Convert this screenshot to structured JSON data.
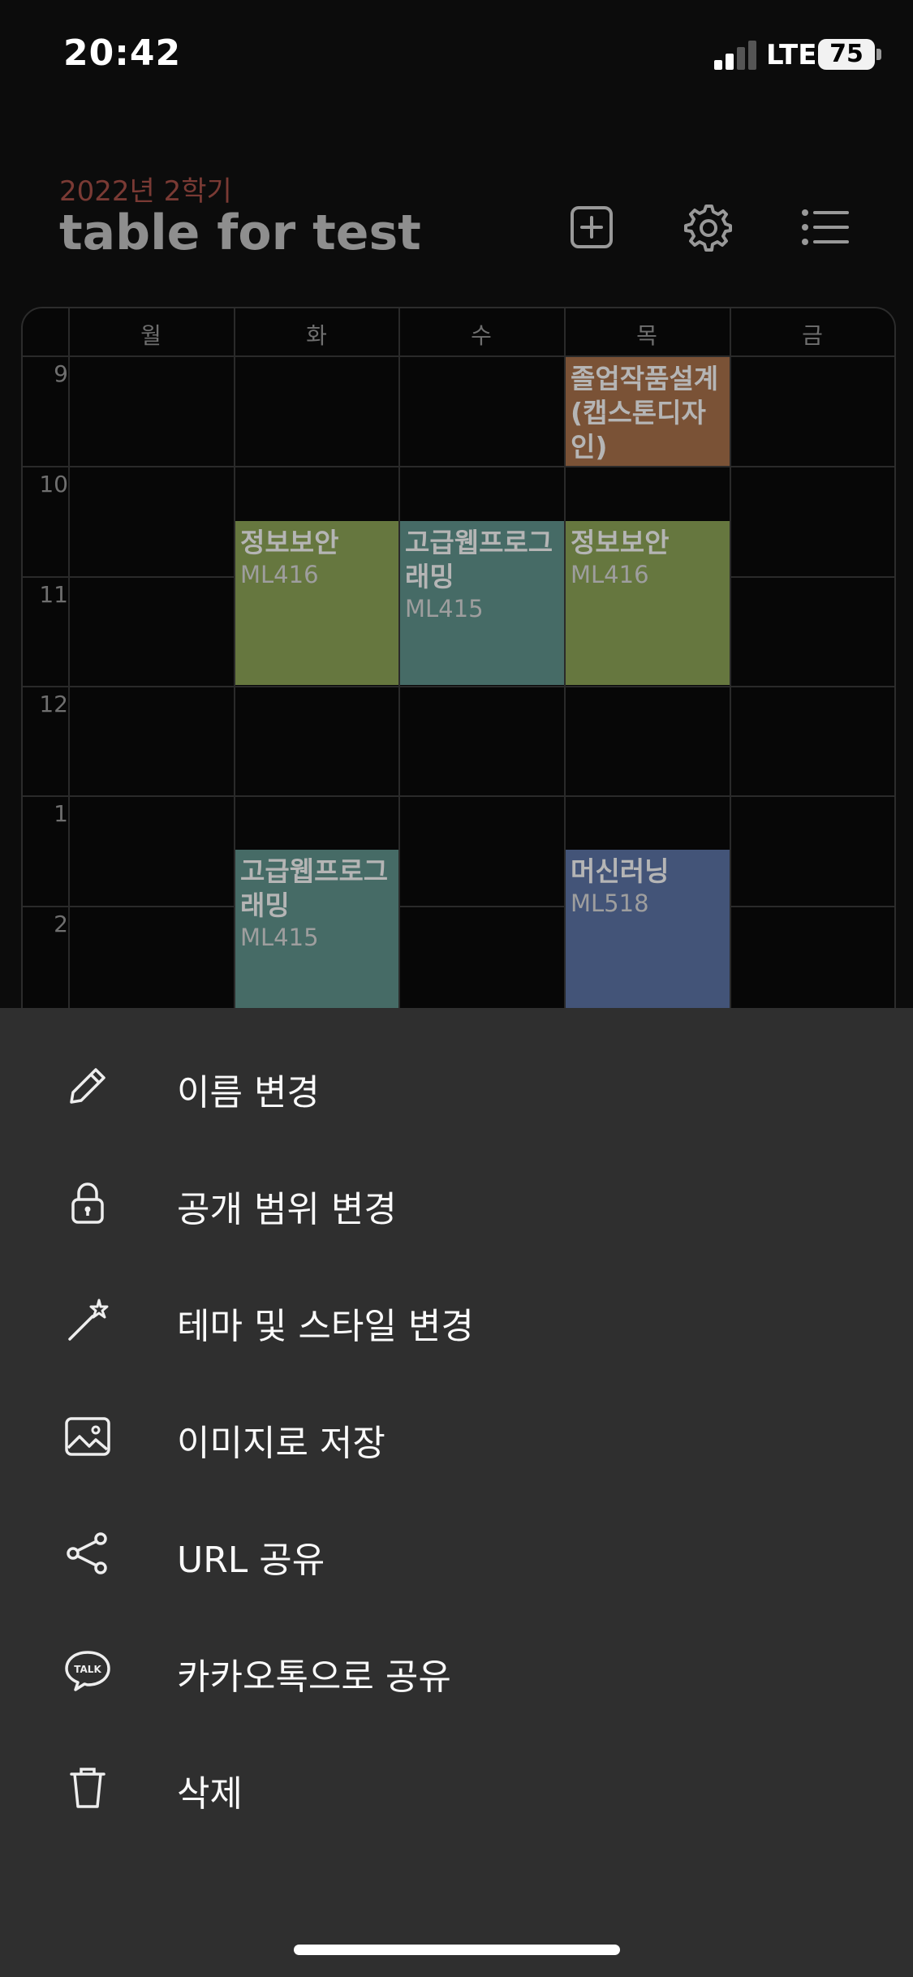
{
  "status_bar": {
    "time": "20:42",
    "network": "LTE",
    "battery": "75"
  },
  "header": {
    "semester": "2022년 2학기",
    "title": "table for test",
    "icons": [
      "add-square-icon",
      "gear-icon",
      "list-icon"
    ]
  },
  "timetable": {
    "days": [
      "월",
      "화",
      "수",
      "목",
      "금"
    ],
    "hours": [
      "9",
      "10",
      "11",
      "12",
      "1",
      "2"
    ],
    "courses": [
      {
        "name": "졸업작품설계(캡스톤디자인)",
        "room": "",
        "day": "목",
        "start": "9:00",
        "end": "10:00",
        "color": "#7a5236"
      },
      {
        "name": "정보보안",
        "room": "ML416",
        "day": "화",
        "start": "10:30",
        "end": "12:00",
        "color": "#66773f"
      },
      {
        "name": "고급웹프로그래밍",
        "room": "ML415",
        "day": "수",
        "start": "10:30",
        "end": "12:00",
        "color": "#466b66"
      },
      {
        "name": "정보보안",
        "room": "ML416",
        "day": "목",
        "start": "10:30",
        "end": "12:00",
        "color": "#66773f"
      },
      {
        "name": "고급웹프로그래밍",
        "room": "ML415",
        "day": "화",
        "start": "1:30",
        "end": "",
        "color": "#466b66"
      },
      {
        "name": "머신러닝",
        "room": "ML518",
        "day": "목",
        "start": "1:30",
        "end": "",
        "color": "#435478"
      }
    ]
  },
  "menu": {
    "items": [
      {
        "label": "이름 변경",
        "icon": "pencil-icon"
      },
      {
        "label": "공개 범위 변경",
        "icon": "lock-icon"
      },
      {
        "label": "테마 및 스타일 변경",
        "icon": "magic-wand-icon"
      },
      {
        "label": "이미지로 저장",
        "icon": "image-icon"
      },
      {
        "label": "URL 공유",
        "icon": "share-icon"
      },
      {
        "label": "카카오톡으로 공유",
        "icon": "kakaotalk-icon",
        "icon_text": "TALK"
      },
      {
        "label": "삭제",
        "icon": "trash-icon"
      }
    ]
  },
  "colors": {
    "sheet_bg": "#2f2f2f",
    "semester_text": "#7a3a34"
  }
}
